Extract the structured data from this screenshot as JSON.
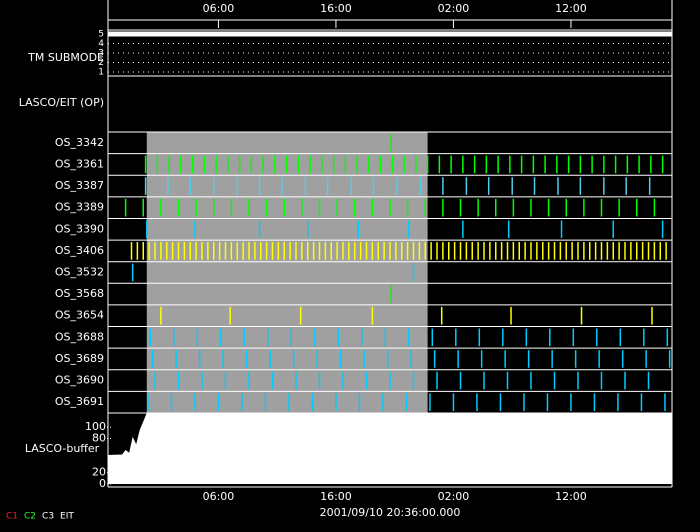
{
  "chart_data": {
    "type": "timeline",
    "xlim": [
      0,
      48
    ],
    "xticks": [
      {
        "value": 9.4,
        "label": "06:00"
      },
      {
        "value": 19.4,
        "label": "16:00"
      },
      {
        "value": 29.4,
        "label": "02:00"
      },
      {
        "value": 39.4,
        "label": "12:00"
      }
    ],
    "x_label": "2001/09/10 20:36:00.000",
    "shaded_range": [
      3.3,
      27.2
    ],
    "submode": {
      "label": "TM SUBMODE",
      "ylim": [
        1,
        5
      ],
      "yticks": [
        1,
        2,
        3,
        4,
        5
      ],
      "x": [
        0,
        48
      ],
      "values": [
        5,
        5
      ],
      "color": "#ffffff"
    },
    "op_label": "LASCO/EIT (OP)",
    "rows": [
      {
        "name": "OS_3342",
        "color": "#00ff00",
        "times": [
          24.1
        ]
      },
      {
        "name": "OS_3361",
        "color": "#00ff00",
        "times": [
          3.2,
          4.2,
          5.2,
          6.2,
          7.2,
          8.2,
          9.2,
          10.2,
          11.2,
          12.2,
          13.2,
          14.2,
          15.2,
          16.2,
          17.2,
          18.2,
          19.2,
          20.2,
          21.2,
          22.2,
          23.2,
          24.2,
          25.2,
          26.2,
          27.2,
          28.2,
          29.2,
          30.2,
          31.2,
          32.2,
          33.2,
          34.2,
          35.2,
          36.2,
          37.2,
          38.2,
          39.2,
          40.2,
          41.2,
          42.2,
          43.2,
          44.2,
          45.2,
          46.2,
          47.2
        ]
      },
      {
        "name": "OS_3387",
        "color": "#55ccee",
        "times": [
          3.2,
          5.1,
          7.0,
          9.0,
          11.0,
          12.9,
          14.8,
          16.8,
          18.7,
          20.7,
          22.6,
          24.6,
          26.6,
          28.5,
          30.5,
          32.4,
          34.4,
          36.3,
          38.3,
          40.2,
          42.2,
          44.1,
          46.1
        ]
      },
      {
        "name": "OS_3389",
        "color": "#00ff00",
        "times": [
          1.5,
          3.0,
          4.5,
          6.0,
          7.5,
          9.0,
          10.5,
          12.0,
          13.5,
          15.0,
          16.5,
          18.0,
          19.5,
          21.0,
          22.5,
          24.0,
          25.5,
          27.0,
          28.5,
          30.0,
          31.5,
          33.0,
          34.5,
          36.0,
          37.5,
          39.0,
          40.5,
          42.0,
          43.5,
          45.0,
          46.5
        ]
      },
      {
        "name": "OS_3390",
        "color": "#00ccff",
        "times": [
          3.3,
          7.4,
          12.9,
          17.0,
          21.3,
          25.6,
          30.2,
          34.1,
          38.6,
          43.0,
          47.2
        ]
      },
      {
        "name": "OS_3406",
        "color": "#ffff00",
        "times": [
          2.0,
          2.5,
          3.0,
          3.5,
          4.0,
          4.5,
          5.0,
          5.5,
          6.0,
          6.5,
          7.0,
          7.5,
          8.0,
          8.5,
          9.0,
          9.5,
          10.0,
          10.5,
          11.0,
          11.5,
          12.0,
          12.5,
          13.0,
          13.5,
          14.0,
          14.5,
          15.0,
          15.5,
          16.0,
          16.5,
          17.0,
          17.5,
          18.0,
          18.5,
          19.0,
          19.5,
          20.0,
          20.5,
          21.0,
          21.5,
          22.0,
          22.5,
          23.0,
          23.5,
          24.0,
          24.5,
          25.0,
          25.5,
          26.0,
          26.5,
          27.0,
          27.5,
          28.0,
          28.5,
          29.0,
          29.5,
          30.0,
          30.5,
          31.0,
          31.5,
          32.0,
          32.5,
          33.0,
          33.5,
          34.0,
          34.5,
          35.0,
          35.5,
          36.0,
          36.5,
          37.0,
          37.5,
          38.0,
          38.5,
          39.0,
          39.5,
          40.0,
          40.5,
          41.0,
          41.5,
          42.0,
          42.5,
          43.0,
          43.5,
          44.0,
          44.5,
          45.0,
          45.5,
          46.0,
          46.5,
          47.0,
          47.5
        ]
      },
      {
        "name": "OS_3532",
        "color": "#00ccff",
        "times": [
          2.1,
          26.0
        ]
      },
      {
        "name": "OS_3568",
        "color": "#00ff00",
        "times": [
          24.1
        ]
      },
      {
        "name": "OS_3654",
        "color": "#ffff00",
        "times": [
          4.5,
          10.4,
          16.4,
          22.5,
          28.4,
          34.3,
          40.3,
          46.3
        ]
      },
      {
        "name": "OS_3688",
        "color": "#00ccff",
        "times": [
          3.6,
          5.6,
          7.6,
          9.6,
          11.6,
          13.6,
          15.6,
          17.6,
          19.6,
          21.6,
          23.6,
          25.6,
          27.6,
          29.6,
          31.6,
          33.6,
          35.6,
          37.6,
          39.6,
          41.6,
          43.6,
          45.6,
          47.6
        ]
      },
      {
        "name": "OS_3689",
        "color": "#00ccff",
        "times": [
          3.8,
          5.8,
          7.8,
          9.8,
          11.8,
          13.8,
          15.8,
          17.8,
          19.8,
          21.8,
          23.8,
          25.8,
          27.8,
          29.8,
          31.8,
          33.8,
          35.8,
          37.8,
          39.8,
          41.8,
          43.8,
          45.8,
          47.8
        ]
      },
      {
        "name": "OS_3690",
        "color": "#00ccff",
        "times": [
          4.0,
          6.0,
          8.0,
          10.0,
          12.0,
          14.0,
          16.0,
          18.0,
          20.0,
          22.0,
          24.0,
          26.0,
          28.0,
          30.0,
          32.0,
          34.0,
          36.0,
          38.0,
          40.0,
          42.0,
          44.0,
          46.0
        ]
      },
      {
        "name": "OS_3691",
        "color": "#00ccff",
        "times": [
          3.4,
          5.4,
          7.4,
          9.4,
          11.4,
          13.4,
          15.4,
          17.4,
          19.4,
          21.4,
          23.4,
          25.4,
          27.4,
          29.4,
          31.4,
          33.4,
          35.4,
          37.4,
          39.4,
          41.4,
          43.4,
          45.4,
          47.4
        ]
      }
    ],
    "buffer": {
      "label": "LASCO-buffer",
      "ylim": [
        0,
        125
      ],
      "yticks": [
        0,
        20,
        80,
        100
      ],
      "color": "#ffffff",
      "x": [
        0,
        1.2,
        1.5,
        1.8,
        2.1,
        2.4,
        2.7,
        3.0,
        3.3,
        48
      ],
      "values": [
        51,
        52,
        60,
        55,
        83,
        70,
        95,
        110,
        125,
        125
      ]
    },
    "legend": [
      {
        "name": "C1",
        "color": "#ff2020"
      },
      {
        "name": "C2",
        "color": "#20ff20"
      },
      {
        "name": "C3",
        "color": "#ffffff"
      },
      {
        "name": "EIT",
        "color": "#ffffff"
      }
    ]
  }
}
